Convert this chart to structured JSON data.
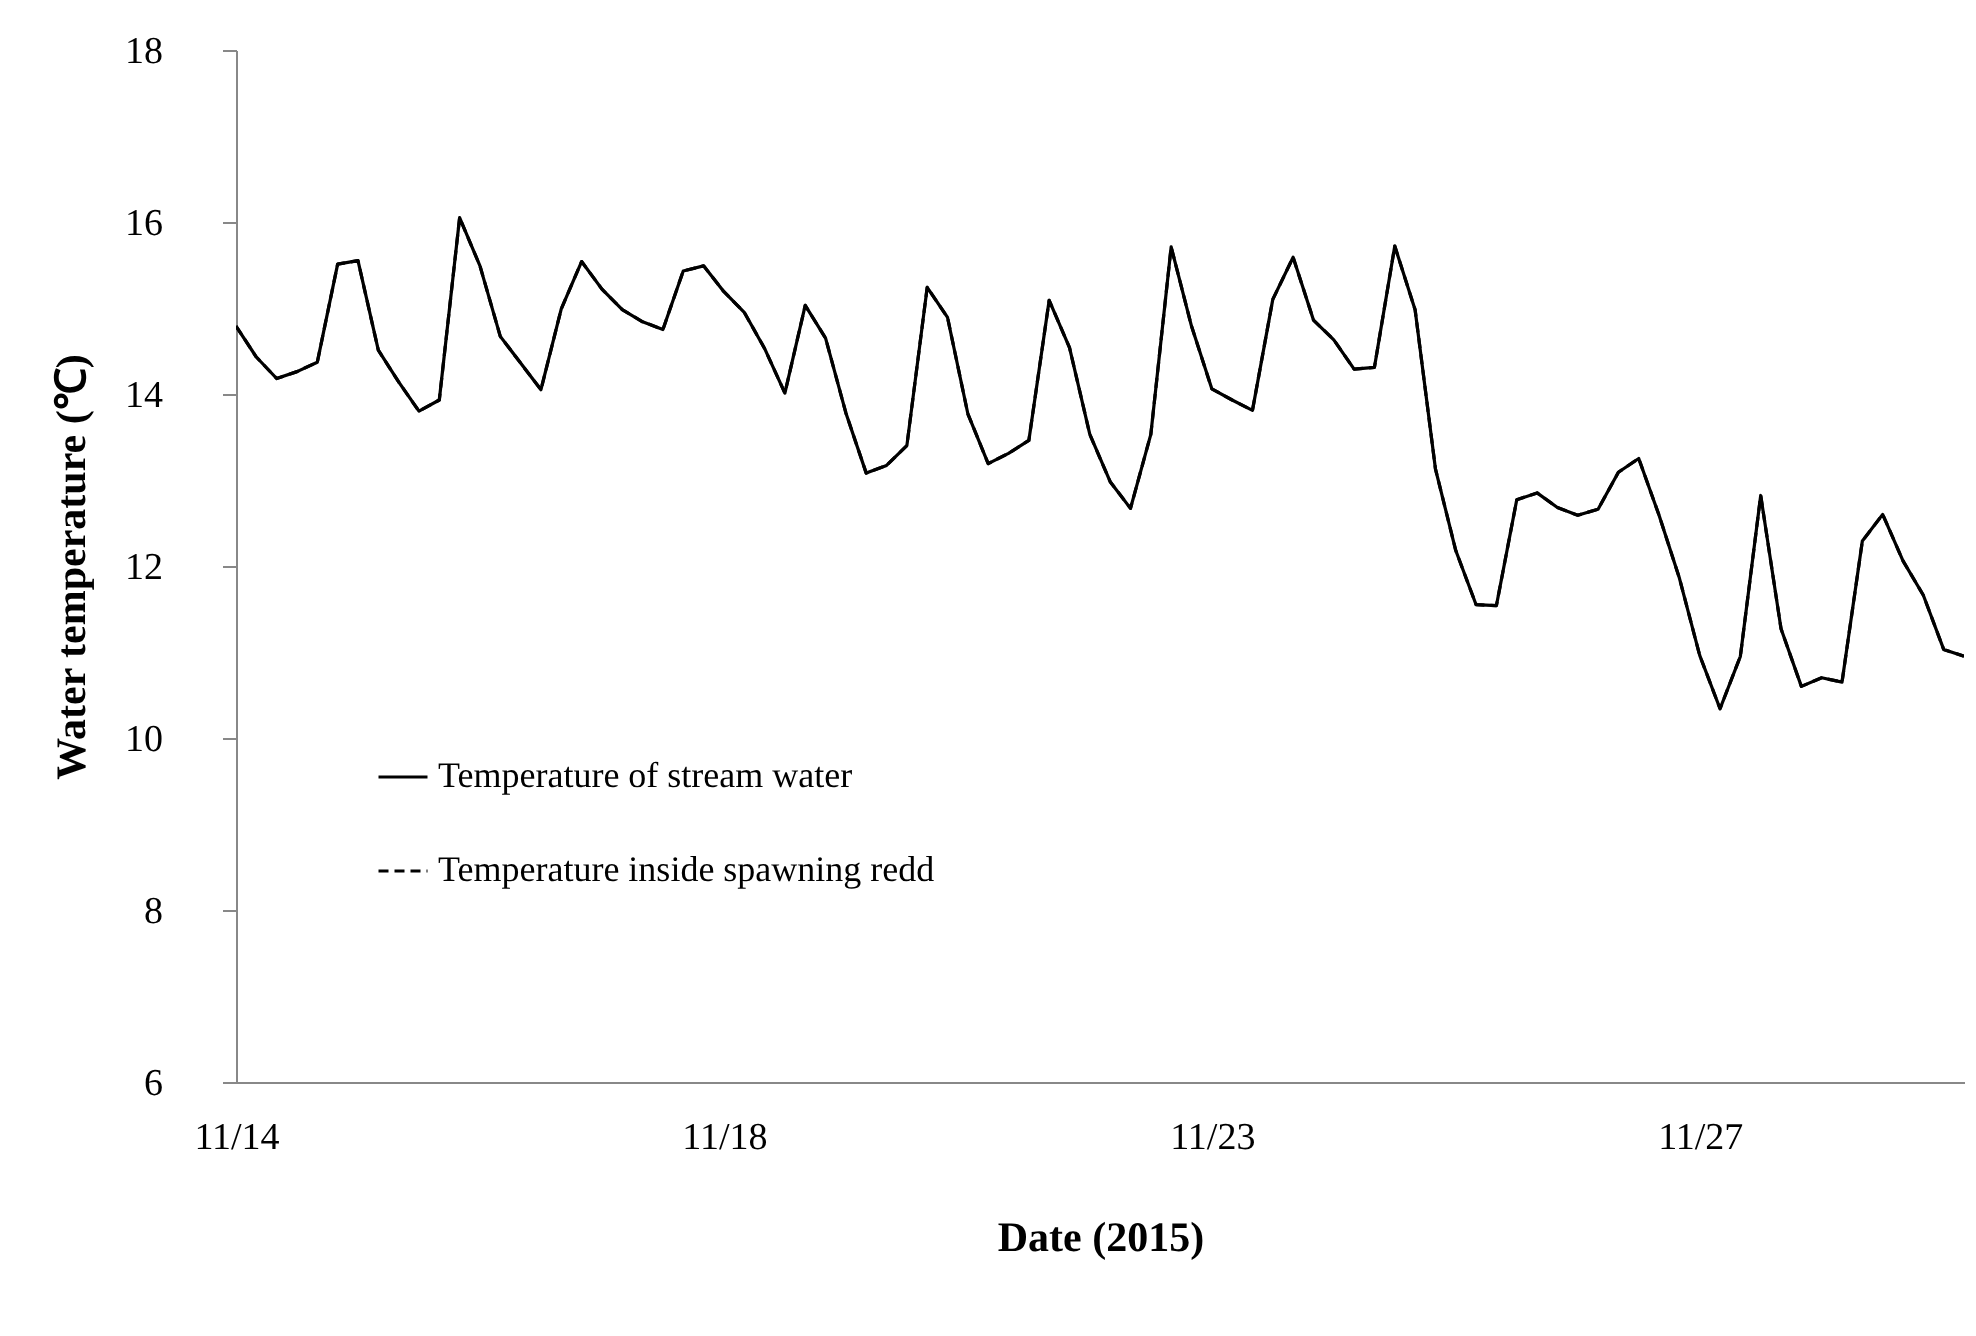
{
  "chart_data": {
    "type": "line",
    "xlabel": "Date (2015)",
    "ylabel": "Water temperature (℃)",
    "ylim": [
      6,
      18
    ],
    "yticks": [
      6,
      8,
      10,
      12,
      14,
      16,
      18
    ],
    "grid": false,
    "legend": "left",
    "marker": "none",
    "categories": [
      "11/14",
      null,
      null,
      null,
      null,
      null,
      null,
      null,
      null,
      null,
      null,
      null,
      null,
      null,
      null,
      null,
      null,
      null,
      null,
      null,
      null,
      null,
      null,
      null,
      "11/18",
      null,
      null,
      null,
      null,
      null,
      null,
      null,
      null,
      null,
      null,
      null,
      null,
      null,
      null,
      null,
      null,
      null,
      null,
      null,
      null,
      null,
      null,
      null,
      "11/23",
      null,
      null,
      null,
      null,
      null,
      null,
      null,
      null,
      null,
      null,
      null,
      null,
      null,
      null,
      null,
      null,
      null,
      null,
      null,
      null,
      null,
      null,
      null,
      "11/27",
      null,
      null,
      null,
      null,
      null,
      null,
      null,
      null,
      null,
      null,
      null,
      null,
      null
    ],
    "series": [
      {
        "name": "Temperature of stream water",
        "color": "#000000",
        "line_style": "solid",
        "values": [
          14.79,
          14.43,
          14.18,
          14.26,
          14.37,
          15.51,
          15.55,
          14.51,
          14.14,
          13.8,
          13.93,
          16.05,
          15.49,
          14.67,
          14.36,
          14.05,
          14.99,
          15.54,
          15.22,
          14.98,
          14.84,
          14.75,
          15.43,
          15.49,
          15.19,
          14.95,
          14.53,
          14.01,
          15.03,
          14.65,
          13.78,
          13.08,
          13.17,
          13.4,
          15.24,
          14.89,
          13.77,
          13.19,
          13.31,
          13.46,
          15.09,
          14.54,
          13.53,
          12.98,
          12.67,
          13.53,
          15.71,
          14.79,
          14.06,
          13.93,
          13.81,
          15.1,
          15.59,
          14.86,
          14.63,
          14.29,
          14.31,
          15.72,
          14.98,
          13.13,
          12.18,
          11.55,
          11.54,
          12.77,
          12.85,
          12.68,
          12.59,
          12.66,
          13.09,
          13.25,
          12.59,
          11.86,
          10.96,
          10.34,
          10.95,
          12.82,
          11.27,
          10.6,
          10.7,
          10.65,
          12.29,
          12.6,
          12.06,
          11.66,
          11.03,
          10.95
        ]
      },
      {
        "name": "Temperature inside spawning redd",
        "color": "#000000",
        "line_style": "dashed",
        "values": [
          14.79,
          14.43,
          14.18,
          14.26,
          14.37,
          15.51,
          15.55,
          14.51,
          14.14,
          13.8,
          13.93,
          16.05,
          15.49,
          14.67,
          14.36,
          14.05,
          14.99,
          15.54,
          15.22,
          14.98,
          14.84,
          14.75,
          15.43,
          15.49,
          15.19,
          14.95,
          14.53,
          14.01,
          15.03,
          14.65,
          13.78,
          13.08,
          13.17,
          13.4,
          15.24,
          14.89,
          13.77,
          13.19,
          13.31,
          13.46,
          15.09,
          14.54,
          13.53,
          12.98,
          12.67,
          13.53,
          15.71,
          14.79,
          14.06,
          13.93,
          13.81,
          15.1,
          15.59,
          14.86,
          14.63,
          14.29,
          14.31,
          15.72,
          14.98,
          13.13,
          12.18,
          11.55,
          11.54,
          12.77,
          12.85,
          12.68,
          12.59,
          12.66,
          13.09,
          13.25,
          12.59,
          11.86,
          10.96,
          10.34,
          10.95,
          12.82,
          11.27,
          10.6,
          10.7,
          10.65,
          12.29,
          12.6,
          12.06,
          11.66,
          11.03,
          10.95
        ]
      }
    ]
  }
}
